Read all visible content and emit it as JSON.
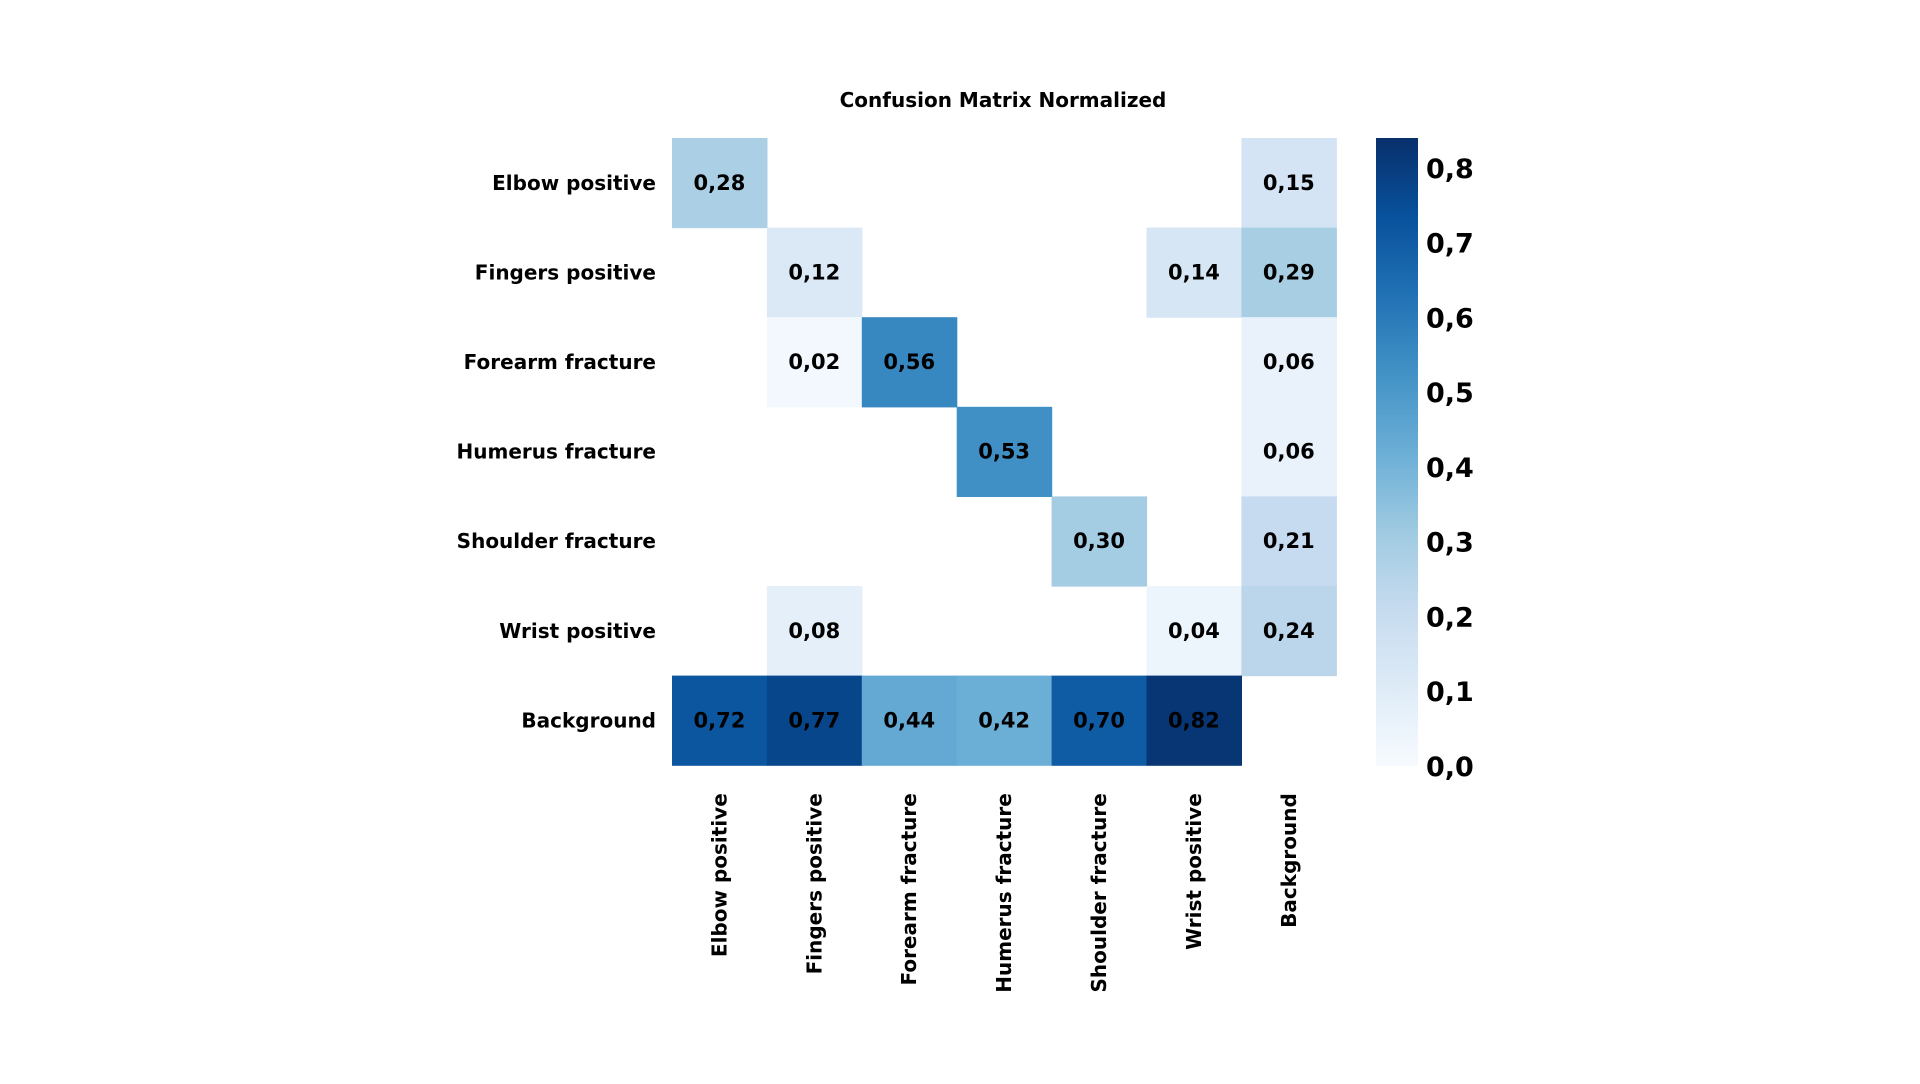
{
  "chart_data": {
    "type": "heatmap",
    "title": "Confusion Matrix Normalized",
    "rows": [
      "Elbow positive",
      "Fingers positive",
      "Forearm fracture",
      "Humerus fracture",
      "Shoulder fracture",
      "Wrist positive",
      "Background"
    ],
    "columns": [
      "Elbow positive",
      "Fingers positive",
      "Forearm fracture",
      "Humerus fracture",
      "Shoulder fracture",
      "Wrist positive",
      "Background"
    ],
    "values": [
      [
        0.28,
        null,
        null,
        null,
        null,
        null,
        0.15
      ],
      [
        null,
        0.12,
        null,
        null,
        null,
        0.14,
        0.29
      ],
      [
        null,
        0.02,
        0.56,
        null,
        null,
        null,
        0.06
      ],
      [
        null,
        null,
        null,
        0.53,
        null,
        null,
        0.06
      ],
      [
        null,
        null,
        null,
        null,
        0.3,
        null,
        0.21
      ],
      [
        null,
        0.08,
        null,
        null,
        null,
        0.04,
        0.24
      ],
      [
        0.72,
        0.77,
        0.44,
        0.42,
        0.7,
        0.82,
        null
      ]
    ],
    "cell_labels": [
      [
        "0,28",
        "",
        "",
        "",
        "",
        "",
        "0,15"
      ],
      [
        "",
        "0,12",
        "",
        "",
        "",
        "0,14",
        "0,29"
      ],
      [
        "",
        "0,02",
        "0,56",
        "",
        "",
        "",
        "0,06"
      ],
      [
        "",
        "",
        "",
        "0,53",
        "",
        "",
        "0,06"
      ],
      [
        "",
        "",
        "",
        "",
        "0,30",
        "",
        "0,21"
      ],
      [
        "",
        "0,08",
        "",
        "",
        "",
        "0,04",
        "0,24"
      ],
      [
        "0,72",
        "0,77",
        "0,44",
        "0,42",
        "0,70",
        "0,82",
        ""
      ]
    ],
    "colorbar": {
      "range": [
        0,
        0.84
      ],
      "ticks": [
        0,
        0.1,
        0.2,
        0.3,
        0.4,
        0.5,
        0.6,
        0.7,
        0.8
      ],
      "tick_labels": [
        "0,0",
        "0,1",
        "0,2",
        "0,3",
        "0,4",
        "0,5",
        "0,6",
        "0,7",
        "0,8"
      ],
      "colormap": "Blues",
      "low_color": "#f7fbff",
      "high_color": "#08306b"
    },
    "legend_placement": "right",
    "grid": false
  }
}
